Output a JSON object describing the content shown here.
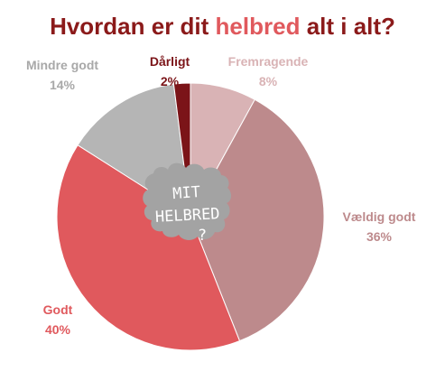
{
  "title": {
    "part1": "Hvordan er dit ",
    "accent": "helbred",
    "part2": " alt i alt?"
  },
  "center_label": {
    "line1": "MIT",
    "line2": "HELBRED",
    "line3": "?"
  },
  "chart_data": {
    "type": "pie",
    "title": "Hvordan er dit helbred alt i alt?",
    "unit": "%",
    "slices": [
      {
        "name": "Fremragende",
        "value": 8,
        "label": "8%",
        "color": "#d9b3b5",
        "label_color": "#d9b3b5"
      },
      {
        "name": "Vældig godt",
        "value": 36,
        "label": "36%",
        "color": "#bd8a8c",
        "label_color": "#bd8a8c"
      },
      {
        "name": "Godt",
        "value": 40,
        "label": "40%",
        "color": "#e0595d",
        "label_color": "#e0595d"
      },
      {
        "name": "Mindre godt",
        "value": 14,
        "label": "14%",
        "color": "#b5b5b5",
        "label_color": "#a8a8a8"
      },
      {
        "name": "Dårligt",
        "value": 2,
        "label": "2%",
        "color": "#7b1418",
        "label_color": "#7b1418"
      }
    ],
    "start_angle_deg": 0,
    "direction": "clockwise"
  },
  "colors": {
    "title": "#8b1a1a",
    "title_accent": "#e0595d",
    "center_blob": "#a3a3a3"
  }
}
